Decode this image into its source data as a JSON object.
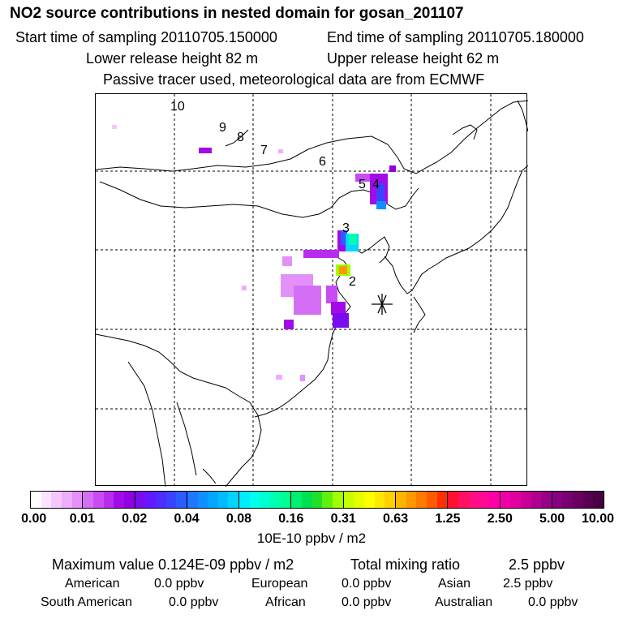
{
  "header": {
    "title": "NO2 source contributions in nested domain for gosan_201107",
    "start_label": "Start time of sampling 20110705.150000",
    "end_label": "End time of sampling 20110705.180000",
    "lower_label": "Lower release height   82 m",
    "upper_label": "Upper release height   62 m",
    "tracer_note": "Passive tracer used, meteorological data are from ECMWF"
  },
  "map": {
    "numbered_labels": [
      "10",
      "9",
      "8",
      "7",
      "6",
      "5",
      "4",
      "3",
      "2"
    ],
    "receptor_marker": "star-cross-icon"
  },
  "colorbar": {
    "ticks": [
      "0.00",
      "0.01",
      "0.02",
      "0.04",
      "0.08",
      "0.16",
      "0.31",
      "0.63",
      "1.25",
      "2.50",
      "5.00",
      "10.00"
    ],
    "unit": "10E-10 ppbv / m2",
    "colors": [
      [
        "#ffffff",
        "#fbe3ff",
        "#f5c8fd",
        "#eeadfc",
        "#e391f9"
      ],
      [
        "#d46ff5",
        "#c84cf2",
        "#b82cee",
        "#a30ae8",
        "#9000e0"
      ],
      [
        "#7a0cf0",
        "#6418ff",
        "#4d2dff",
        "#3a44ff",
        "#2b5cff"
      ],
      [
        "#1e78ff",
        "#1090ff",
        "#05a6ff",
        "#00bcff",
        "#00d4ff"
      ],
      [
        "#00ecff",
        "#00ffee",
        "#00ffd0",
        "#00ffb0",
        "#00ff90"
      ],
      [
        "#00f070",
        "#00e050",
        "#22e02a",
        "#60f010",
        "#a0ff00"
      ],
      [
        "#c8ff00",
        "#e6ff00",
        "#ffff00",
        "#ffe800",
        "#ffd000"
      ],
      [
        "#ffb400",
        "#ff9800",
        "#ff7a00",
        "#ff5a00",
        "#ff3000"
      ],
      [
        "#ff1030",
        "#ff1060",
        "#ff1080",
        "#ff0a95",
        "#ff00a8"
      ],
      [
        "#f000a8",
        "#e000a0",
        "#c80098",
        "#b00090",
        "#980088"
      ],
      [
        "#880080",
        "#780070",
        "#680060",
        "#580050",
        "#480040"
      ]
    ]
  },
  "summary": {
    "max_label": "Maximum value  0.124E-09 ppbv / m2",
    "total_label": "Total mixing ratio",
    "total_value": "2.5 ppbv",
    "regions": [
      {
        "name": "American",
        "value": "0.0 ppbv"
      },
      {
        "name": "European",
        "value": "0.0 ppbv"
      },
      {
        "name": "Asian",
        "value": "2.5 ppbv"
      },
      {
        "name": "South American",
        "value": "0.0 ppbv"
      },
      {
        "name": "African",
        "value": "0.0 ppbv"
      },
      {
        "name": "Australian",
        "value": "0.0 ppbv"
      }
    ]
  }
}
